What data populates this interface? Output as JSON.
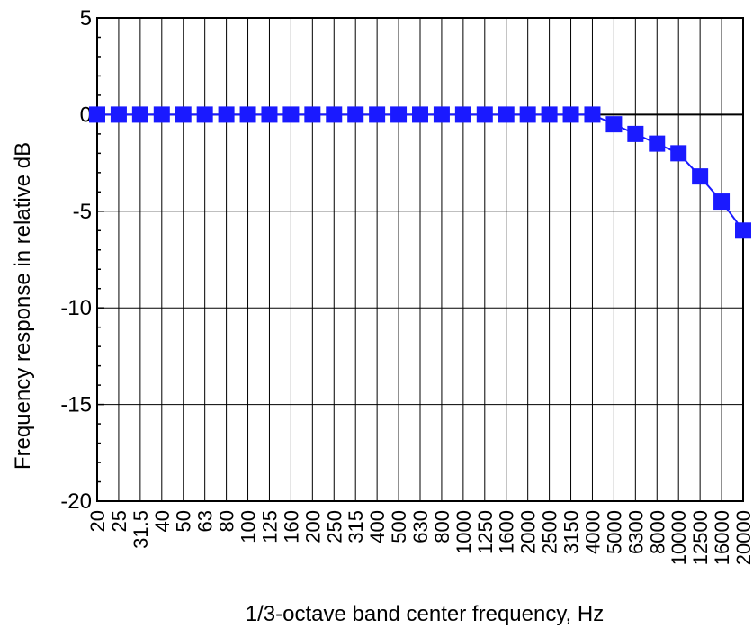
{
  "chart_data": {
    "type": "line",
    "title": "",
    "xlabel": "1/3-octave band center frequency, Hz",
    "ylabel": "Frequency response in relative dB",
    "ylim": [
      -20,
      5
    ],
    "yticks": [
      5,
      0,
      -5,
      -10,
      -15,
      -20
    ],
    "yticklabels": [
      "5",
      "0",
      "-5",
      "-10",
      "-15",
      "-20"
    ],
    "grid": true,
    "zero_line": true,
    "categories": [
      "20",
      "25",
      "31.5",
      "40",
      "50",
      "63",
      "80",
      "100",
      "125",
      "160",
      "200",
      "250",
      "315",
      "400",
      "500",
      "630",
      "800",
      "1000",
      "1250",
      "1600",
      "2000",
      "2500",
      "3150",
      "4000",
      "5000",
      "6300",
      "8000",
      "10000",
      "12500",
      "16000",
      "20000"
    ],
    "series": [
      {
        "color": "#1a1aff",
        "marker": "square",
        "values": [
          0,
          0,
          0,
          0,
          0,
          0,
          0,
          0,
          0,
          0,
          0,
          0,
          0,
          0,
          0,
          0,
          0,
          0,
          0,
          0,
          0,
          0,
          0,
          0,
          -0.5,
          -1,
          -1.5,
          -2,
          -3.2,
          -4.5,
          -6
        ]
      }
    ]
  }
}
